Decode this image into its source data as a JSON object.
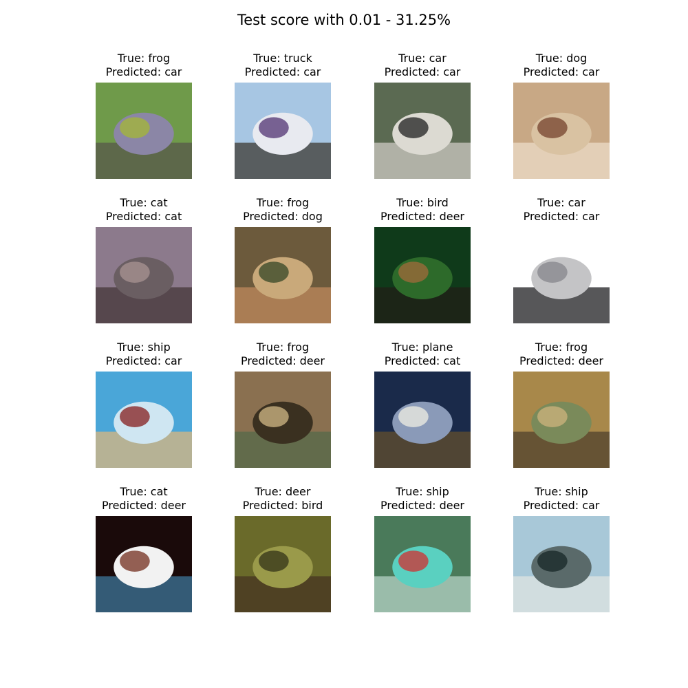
{
  "title": "Test score with 0.01 - 31.25%",
  "cells": [
    {
      "true_label": "True: frog",
      "pred_label": "Predicted: car",
      "icon": "frog-image",
      "colors": [
        "#6f9a4a",
        "#8b86a6",
        "#a3b43c",
        "#5b5f4a"
      ]
    },
    {
      "true_label": "True: truck",
      "pred_label": "Predicted: car",
      "icon": "truck-image",
      "colors": [
        "#a7c6e3",
        "#e8eaf0",
        "#5a3e7a",
        "#4a4a48"
      ]
    },
    {
      "true_label": "True: car",
      "pred_label": "Predicted: car",
      "icon": "car-image",
      "colors": [
        "#5b6a52",
        "#dcdad2",
        "#2c2c2c",
        "#bfbdb5"
      ]
    },
    {
      "true_label": "True: dog",
      "pred_label": "Predicted: car",
      "icon": "dog-image",
      "colors": [
        "#c8a885",
        "#d9c2a2",
        "#7a4a34",
        "#e8d6bf"
      ]
    },
    {
      "true_label": "True: cat",
      "pred_label": "Predicted: cat",
      "icon": "cat-image",
      "colors": [
        "#8c7a8c",
        "#6a5e62",
        "#a59090",
        "#4c3e42"
      ]
    },
    {
      "true_label": "True: frog",
      "pred_label": "Predicted: dog",
      "icon": "frog-image",
      "colors": [
        "#6c5a3c",
        "#c9a97a",
        "#3f4c2c",
        "#b58458"
      ]
    },
    {
      "true_label": "True: bird",
      "pred_label": "Predicted: deer",
      "icon": "bird-image",
      "colors": [
        "#0f3a1a",
        "#2d6a2a",
        "#9a6a3a",
        "#1f2218"
      ]
    },
    {
      "true_label": "True: car",
      "pred_label": "Predicted: car",
      "icon": "car-image",
      "colors": [
        "#ffffff",
        "#c4c4c6",
        "#8a8a8e",
        "#3a3a3c"
      ]
    },
    {
      "true_label": "True: ship",
      "pred_label": "Predicted: car",
      "icon": "ship-image",
      "colors": [
        "#4aa6d8",
        "#cfe6f2",
        "#8a2a2a",
        "#c9b48a"
      ]
    },
    {
      "true_label": "True: frog",
      "pred_label": "Predicted: deer",
      "icon": "frog-image",
      "colors": [
        "#8a7050",
        "#3a3020",
        "#c8b080",
        "#5a6a4a"
      ]
    },
    {
      "true_label": "True: plane",
      "pred_label": "Predicted: cat",
      "icon": "plane-image",
      "colors": [
        "#1a2a4a",
        "#8a9ab8",
        "#e8e8e0",
        "#5a4a30"
      ]
    },
    {
      "true_label": "True: frog",
      "pred_label": "Predicted: deer",
      "icon": "frog-image",
      "colors": [
        "#a8884a",
        "#7a8a5a",
        "#c9b07a",
        "#5a4a30"
      ]
    },
    {
      "true_label": "True: cat",
      "pred_label": "Predicted: deer",
      "icon": "cat-image",
      "colors": [
        "#1a0a0a",
        "#f2f2f2",
        "#7a3a2a",
        "#3a6a8a"
      ]
    },
    {
      "true_label": "True: deer",
      "pred_label": "Predicted: bird",
      "icon": "deer-image",
      "colors": [
        "#6a6a2a",
        "#9a9a4a",
        "#3a3a1a",
        "#4a3a22"
      ]
    },
    {
      "true_label": "True: ship",
      "pred_label": "Predicted: deer",
      "icon": "ship-image",
      "colors": [
        "#4a7a5a",
        "#5ad0c0",
        "#c83a3a",
        "#a8c8b8"
      ]
    },
    {
      "true_label": "True: ship",
      "pred_label": "Predicted: car",
      "icon": "ship-image",
      "colors": [
        "#a8c8d8",
        "#5a6a6a",
        "#1a2a2a",
        "#d8e0e0"
      ]
    }
  ]
}
